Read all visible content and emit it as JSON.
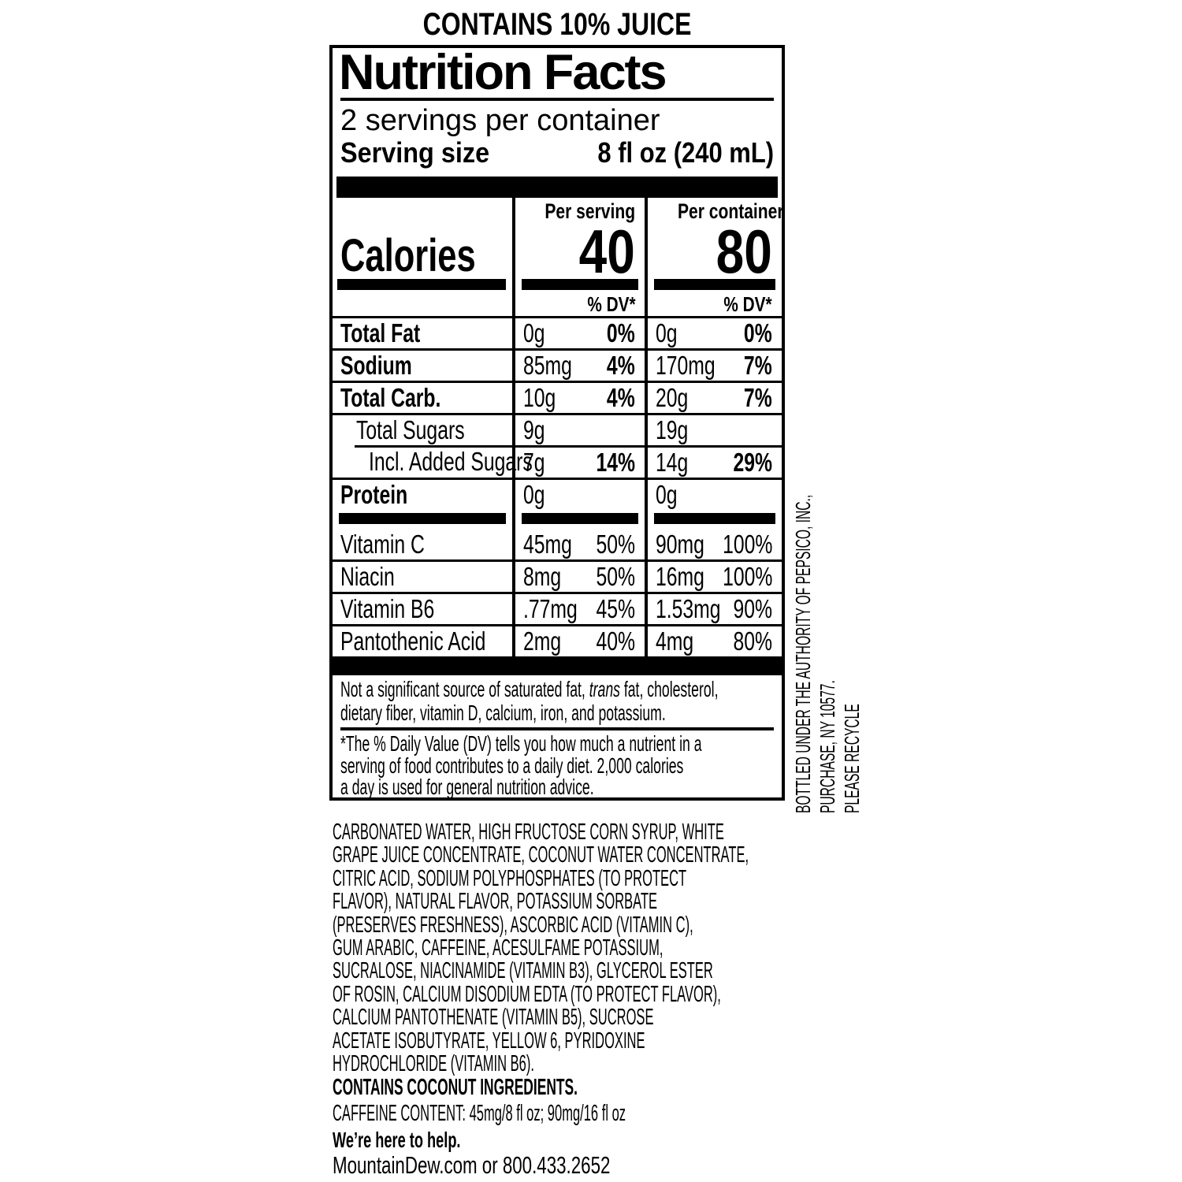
{
  "colors": {
    "ink": "#000000",
    "paper": "#ffffff"
  },
  "top_note": "CONTAINS 10% JUICE",
  "panel": {
    "title": "Nutrition Facts",
    "servings_per_container": "2 servings per container",
    "serving_size_label": "Serving size",
    "serving_size_value": "8 fl oz (240 mL)",
    "calories_label": "Calories",
    "serving_col": {
      "header": "Per serving",
      "calories": "40",
      "dv_header": "% DV*"
    },
    "container_col": {
      "header": "Per container",
      "calories": "80",
      "dv_header": "% DV*"
    },
    "nutrients": [
      {
        "name": "Total Fat",
        "serving_amount": "0g",
        "serving_dv": "0%",
        "container_amount": "0g",
        "container_dv": "0%"
      },
      {
        "name": "Sodium",
        "serving_amount": "85mg",
        "serving_dv": "4%",
        "container_amount": "170mg",
        "container_dv": "7%"
      },
      {
        "name": "Total Carb.",
        "serving_amount": "10g",
        "serving_dv": "4%",
        "container_amount": "20g",
        "container_dv": "7%"
      },
      {
        "name": "Total Sugars",
        "serving_amount": "9g",
        "serving_dv": "",
        "container_amount": "19g",
        "container_dv": ""
      },
      {
        "name": "Incl. Added Sugars",
        "serving_amount": "7g",
        "serving_dv": "14%",
        "container_amount": "14g",
        "container_dv": "29%"
      },
      {
        "name": "Protein",
        "serving_amount": "0g",
        "serving_dv": "",
        "container_amount": "0g",
        "container_dv": ""
      }
    ],
    "vitamins": [
      {
        "name": "Vitamin C",
        "serving_amount": "45mg",
        "serving_dv": "50%",
        "container_amount": "90mg",
        "container_dv": "100%"
      },
      {
        "name": "Niacin",
        "serving_amount": "8mg",
        "serving_dv": "50%",
        "container_amount": "16mg",
        "container_dv": "100%"
      },
      {
        "name": "Vitamin B6",
        "serving_amount": ".77mg",
        "serving_dv": "45%",
        "container_amount": "1.53mg",
        "container_dv": "90%"
      },
      {
        "name": "Pantothenic Acid",
        "serving_amount": "2mg",
        "serving_dv": "40%",
        "container_amount": "4mg",
        "container_dv": "80%"
      }
    ],
    "not_significant": {
      "before": "Not a significant source of saturated fat, ",
      "italic_word": "trans",
      "after": " fat, cholesterol,\ndietary fiber, vitamin D, calcium, iron, and potassium."
    },
    "dv_footnote": "*The % Daily Value (DV) tells you how much a nutrient in a\nserving of food contributes to a daily diet. 2,000 calories\na day is used for general nutrition advice."
  },
  "side_note": "BOTTLED UNDER THE AUTHORITY OF PEPSICO, INC.,\nPURCHASE, NY 10577.\nPLEASE RECYCLE",
  "ingredients": "CARBONATED WATER, HIGH FRUCTOSE CORN SYRUP, WHITE\nGRAPE JUICE CONCENTRATE, COCONUT WATER CONCENTRATE,\nCITRIC ACID, SODIUM POLYPHOSPHATES (TO PROTECT\nFLAVOR), NATURAL FLAVOR, POTASSIUM SORBATE\n(PRESERVES FRESHNESS), ASCORBIC ACID (VITAMIN C),\nGUM ARABIC, CAFFEINE, ACESULFAME POTASSIUM,\nSUCRALOSE, NIACINAMIDE (VITAMIN B3), GLYCEROL ESTER\nOF ROSIN, CALCIUM DISODIUM EDTA (TO PROTECT FLAVOR),\nCALCIUM PANTOTHENATE (VITAMIN B5), SUCROSE\nACETATE ISOBUTYRATE, YELLOW 6, PYRIDOXINE\nHYDROCHLORIDE (VITAMIN B6).",
  "allergen_note": "CONTAINS COCONUT INGREDIENTS.",
  "caffeine_note": "CAFFEINE CONTENT: 45mg/8 fl oz; 90mg/16 fl oz",
  "help_heading": "We’re here to help.",
  "contact_line": "MountainDew.com or 800.433.2652"
}
